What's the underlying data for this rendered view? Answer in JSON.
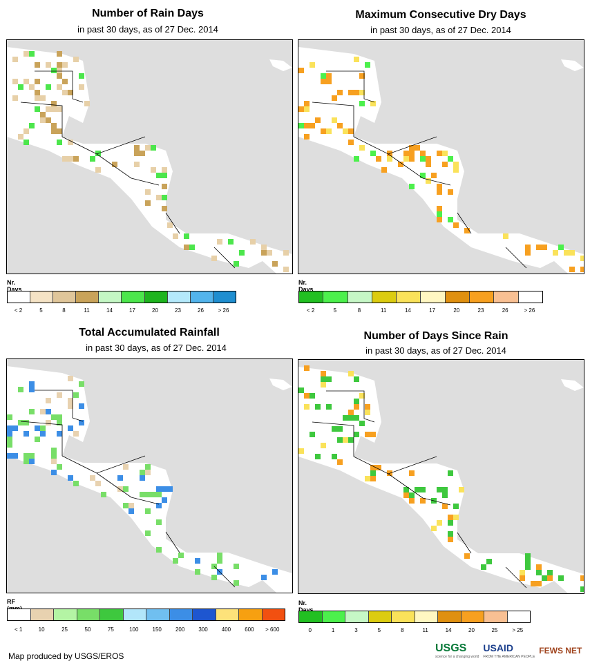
{
  "panels": [
    {
      "title": "Number of Rain Days",
      "subtitle": "in past 30 days, as of 27 Dec. 2014",
      "legend_label": "Nr. Days",
      "legend_colors": [
        "#ffffff",
        "#f5e3c5",
        "#e0c69a",
        "#c9a35a",
        "#c4f7c4",
        "#4ce64c",
        "#1eb41e",
        "#b4e9fb",
        "#53b4ec",
        "#1f8ed0"
      ],
      "legend_ticks": [
        "< 2",
        "5",
        "8",
        "11",
        "14",
        "17",
        "20",
        "23",
        "26",
        "> 26"
      ],
      "fill": {
        "land": "#ffffff",
        "a": "#e7d0a8",
        "b": "#c9a35a",
        "c": "#4ce64c"
      }
    },
    {
      "title": "Maximum Consecutive Dry Days",
      "subtitle": "in past 30 days, as of 27 Dec. 2014",
      "legend_label": "Nr. Days",
      "legend_colors": [
        "#22c022",
        "#4cf04c",
        "#c6f7c6",
        "#dccc10",
        "#fae25a",
        "#fff7c2",
        "#e09010",
        "#f7a020",
        "#f9c093",
        "#ffffff"
      ],
      "legend_ticks": [
        "< 2",
        "5",
        "8",
        "11",
        "14",
        "17",
        "20",
        "23",
        "26",
        "> 26"
      ],
      "fill": {
        "land": "#ffffff",
        "a": "#f7a020",
        "b": "#fae25a",
        "c": "#4cf04c"
      }
    },
    {
      "title": "Total Accumulated Rainfall",
      "subtitle": "in past 30 days, as of 27 Dec. 2014",
      "legend_label": "RF (mm)",
      "legend_colors": [
        "#ffffff",
        "#e8d2b0",
        "#b4f4a4",
        "#78de68",
        "#3ec83e",
        "#b2e6fa",
        "#70bff0",
        "#3c8ee6",
        "#1e56d0",
        "#fde27a",
        "#f7a010",
        "#f25010"
      ],
      "legend_ticks": [
        "< 1",
        "10",
        "25",
        "50",
        "75",
        "100",
        "150",
        "200",
        "300",
        "400",
        "600",
        "> 600"
      ],
      "fill": {
        "land": "#ffffff",
        "a": "#78de68",
        "b": "#3c8ee6",
        "c": "#e8d2b0"
      }
    },
    {
      "title": "Number of Days Since Rain",
      "subtitle": "in past 30 days, as of 27 Dec. 2014",
      "legend_label": "Nr. Days",
      "legend_colors": [
        "#22c022",
        "#4cf04c",
        "#c6f7c6",
        "#dccc10",
        "#fae25a",
        "#fff7c2",
        "#e09010",
        "#f7a020",
        "#f9c093",
        "#ffffff"
      ],
      "legend_ticks": [
        "0",
        "1",
        "3",
        "5",
        "8",
        "11",
        "14",
        "20",
        "25",
        "> 25"
      ],
      "fill": {
        "land": "#ffffff",
        "a": "#3ec83e",
        "b": "#f7a020",
        "c": "#fae25a"
      }
    }
  ],
  "credit": "Map produced by USGS/EROS",
  "logos": {
    "usgs": "USGS",
    "usgs_tag": "science for a changing world",
    "usaid": "USAID",
    "usaid_tag": "FROM THE AMERICAN PEOPLE",
    "fews": "FEWS NET"
  }
}
